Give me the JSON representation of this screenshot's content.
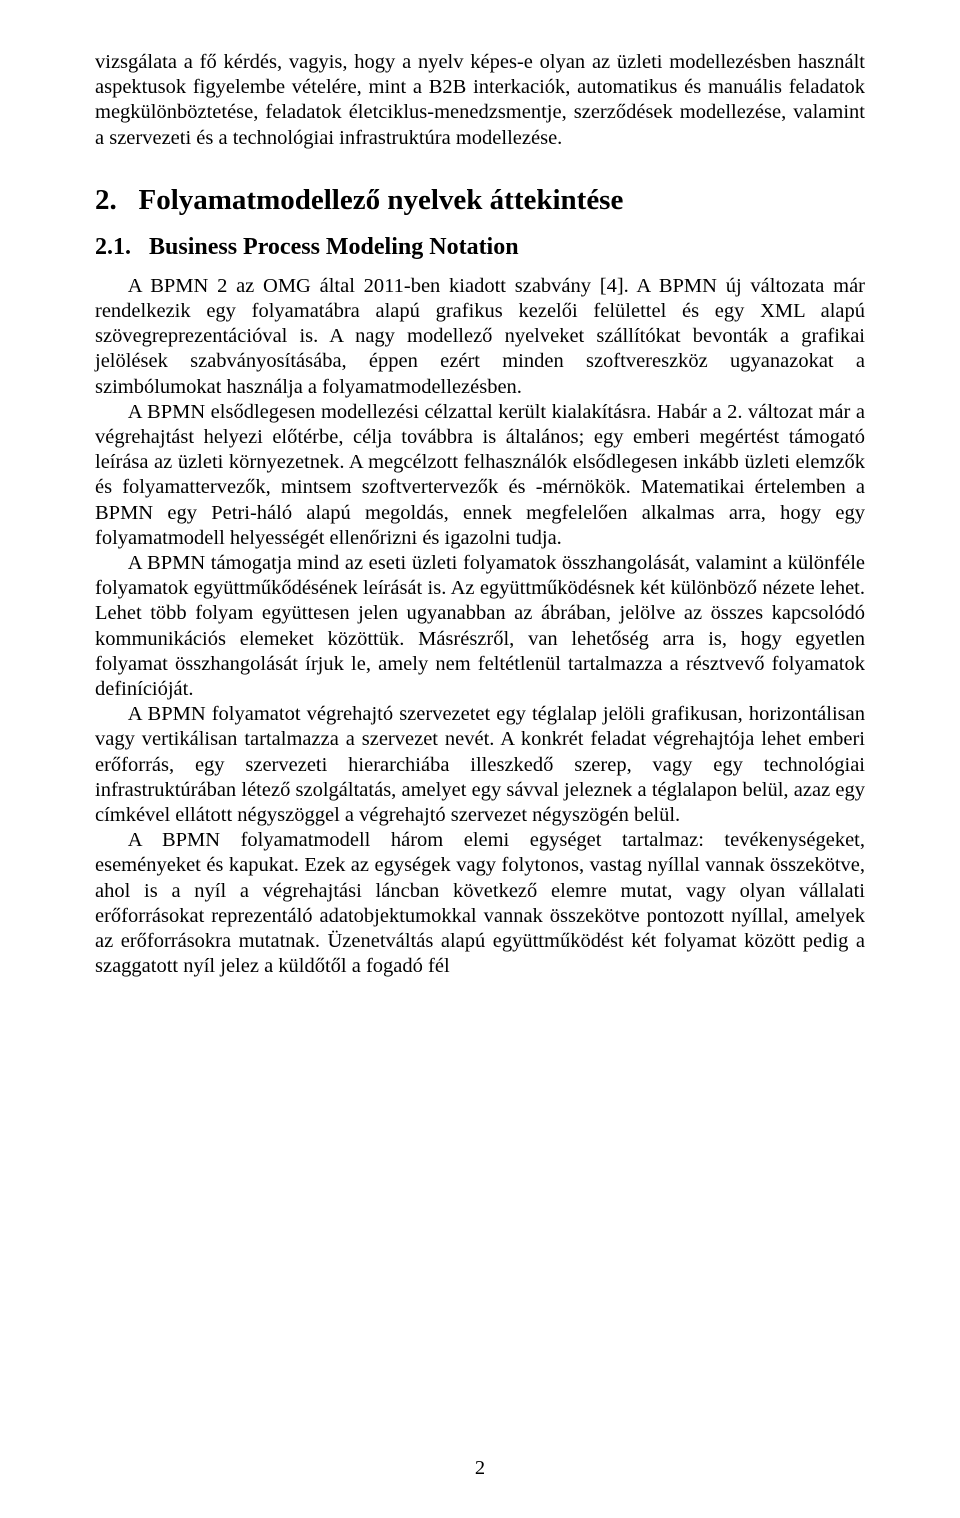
{
  "intro": "vizsgálata a fő kérdés, vagyis, hogy a nyelv képes-e olyan az üzleti modellezésben használt aspektusok figyelembe vételére, mint a B2B interkaciók, automatikus és manuális feladatok megkülönböztetése, feladatok életciklus-menedzsmentje, szerződések modellezése, valamint a szervezeti és a technológiai infrastruktúra modellezése.",
  "section_number": "2.",
  "section_title": "Folyamatmodellező nyelvek áttekintése",
  "subsection_number": "2.1.",
  "subsection_title": "Business Process Modeling Notation",
  "p1": "A BPMN 2 az OMG által 2011-ben kiadott szabvány [4]. A BPMN új változata már rendelkezik egy folyamatábra alapú grafikus kezelői felülettel és egy XML alapú szövegreprezentációval is. A nagy modellező nyelveket szállítókat bevonták a grafikai jelölések szabványosításába, éppen ezért minden szoftvereszköz ugyanazokat a szimbólumokat használja a folyamatmodellezésben.",
  "p2": "A BPMN elsődlegesen modellezési célzattal került kialakításra. Habár a 2. változat már a végrehajtást helyezi előtérbe, célja továbbra is általános; egy emberi megértést támogató leírása az üzleti környezetnek. A megcélzott felhasználók elsődlegesen inkább üzleti elemzők és folyamattervezők, mintsem szoftvertervezők és -mérnökök. Matematikai értelemben a BPMN egy Petri-háló alapú megoldás, ennek megfelelően alkalmas arra, hogy egy folyamatmodell helyességét ellenőrizni és igazolni tudja.",
  "p3": "A BPMN támogatja mind az eseti üzleti folyamatok összhangolását, valamint a különféle folyamatok együttműkődésének leírását is. Az együttműködésnek két különböző nézete lehet. Lehet több folyam együttesen jelen ugyanabban az ábrában, jelölve az összes kapcsolódó kommunikációs elemeket közöttük. Másrészről, van lehetőség arra is, hogy egyetlen folyamat összhangolását írjuk le, amely nem feltétlenül tartalmazza a résztvevő folyamatok definícióját.",
  "p4": "A BPMN folyamatot végrehajtó szervezetet egy téglalap jelöli grafikusan, horizontálisan vagy vertikálisan tartalmazza a szervezet nevét. A konkrét feladat végrehajtója lehet emberi erőforrás, egy szervezeti hierarchiába illeszkedő szerep, vagy egy technológiai infrastruktúrában létező szolgáltatás, amelyet egy sávval jeleznek a téglalapon belül, azaz egy címkével ellátott négyszöggel a végrehajtó szervezet négyszögén belül.",
  "p5": "A BPMN folyamatmodell három elemi egységet tartalmaz: tevékenységeket, eseményeket és kapukat. Ezek az egységek vagy folytonos, vastag nyíllal vannak összekötve, ahol is a nyíl a végrehajtási láncban következő elemre mutat, vagy olyan vállalati erőforrásokat reprezentáló adatobjektumokkal vannak összekötve pontozott nyíllal, amelyek az erőforrásokra mutatnak. Üzenetváltás alapú együttműködést két folyamat között pedig a szaggatott nyíl jelez a küldőtől a fogadó fél",
  "page_number": "2"
}
